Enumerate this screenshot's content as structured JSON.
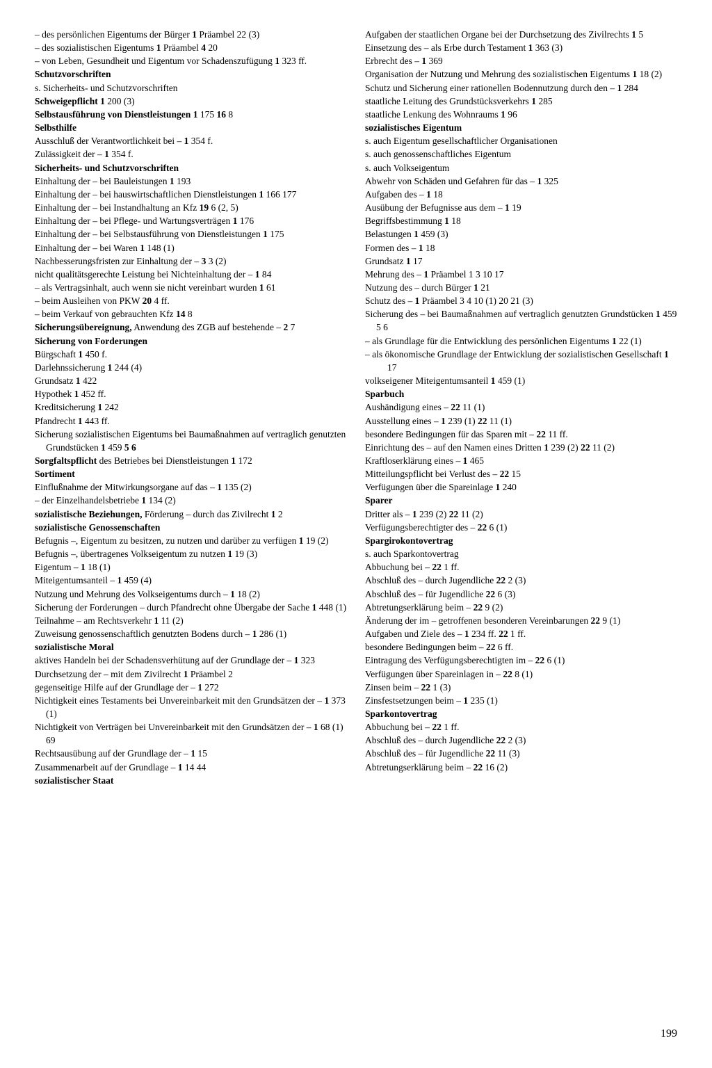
{
  "page_number": "199",
  "left": [
    {
      "t": "sub",
      "pre": "–  ",
      "text": "des persönlichen Eigentums der Bürger  ",
      "refs": [
        {
          "b": "1",
          "r": " Präambel 22 (3)"
        }
      ]
    },
    {
      "t": "sub",
      "pre": "–  ",
      "text": "des sozialistischen Eigentums  ",
      "refs": [
        {
          "b": "1",
          "r": " Präambel   "
        },
        {
          "b": "4",
          "r": " 20"
        }
      ]
    },
    {
      "t": "sub",
      "pre": "–  ",
      "text": "von Leben, Gesundheit und Eigentum vor Schadenszufügung  ",
      "refs": [
        {
          "b": "1",
          "r": " 323 ff."
        }
      ]
    },
    {
      "t": "hw",
      "text": "Schutzvorschriften"
    },
    {
      "t": "entry",
      "text": "s. Sicherheits- und Schutzvorschriften"
    },
    {
      "t": "entry",
      "text": "",
      "hw": "Schweigepflicht",
      "post": "  ",
      "refs": [
        {
          "b": "1",
          "r": " 200 (3)"
        }
      ]
    },
    {
      "t": "entry",
      "text": "",
      "hw": "Selbstausführung von Dienstleistungen",
      "post": "  ",
      "refs": [
        {
          "b": "1",
          "r": " 175  "
        },
        {
          "b": "16",
          "r": " 8"
        }
      ]
    },
    {
      "t": "hw",
      "text": "Selbsthilfe"
    },
    {
      "t": "entry",
      "text": "Ausschluß der Verantwortlichkeit bei –  ",
      "refs": [
        {
          "b": "1",
          "r": " 354 f."
        }
      ]
    },
    {
      "t": "entry",
      "text": "Zulässigkeit der –  ",
      "refs": [
        {
          "b": "1",
          "r": " 354 f."
        }
      ]
    },
    {
      "t": "hw",
      "text": "Sicherheits- und Schutzvorschriften"
    },
    {
      "t": "entry",
      "text": "Einhaltung der – bei Bauleistungen  ",
      "refs": [
        {
          "b": "1",
          "r": " 193"
        }
      ]
    },
    {
      "t": "entry",
      "text": "Einhaltung der – bei hauswirtschaftlichen Dienstleistungen  ",
      "refs": [
        {
          "b": "1",
          "r": " 166 177"
        }
      ]
    },
    {
      "t": "entry",
      "text": "Einhaltung der – bei Instandhaltung an Kfz  ",
      "refs": [
        {
          "b": "19",
          "r": " 6 (2, 5)"
        }
      ]
    },
    {
      "t": "entry",
      "text": "Einhaltung der – bei Pflege- und Wartungsverträgen  ",
      "refs": [
        {
          "b": "1",
          "r": " 176"
        }
      ]
    },
    {
      "t": "entry",
      "text": "Einhaltung der – bei Selbstausführung von Dienstleistungen  ",
      "refs": [
        {
          "b": "1",
          "r": " 175"
        }
      ]
    },
    {
      "t": "entry",
      "text": "Einhaltung der – bei Waren  ",
      "refs": [
        {
          "b": "1",
          "r": " 148 (1)"
        }
      ]
    },
    {
      "t": "entry",
      "text": "Nachbesserungsfristen zur Einhaltung der –  ",
      "refs": [
        {
          "b": "3",
          "r": " 3 (2)"
        }
      ]
    },
    {
      "t": "entry",
      "text": "nicht qualitätsgerechte Leistung bei Nichteinhaltung der –  ",
      "refs": [
        {
          "b": "1",
          "r": " 84"
        }
      ]
    },
    {
      "t": "sub",
      "pre": "–  ",
      "text": "als Vertragsinhalt, auch wenn sie nicht vereinbart wurden  ",
      "refs": [
        {
          "b": "1",
          "r": " 61"
        }
      ]
    },
    {
      "t": "sub",
      "pre": "–  ",
      "text": "beim Ausleihen von PKW  ",
      "refs": [
        {
          "b": "20",
          "r": " 4 ff."
        }
      ]
    },
    {
      "t": "sub",
      "pre": "–  ",
      "text": "beim Verkauf von gebrauchten Kfz  ",
      "refs": [
        {
          "b": "14",
          "r": " 8"
        }
      ]
    },
    {
      "t": "entry",
      "text": "",
      "hw": "Sicherungsübereignung,",
      "post": " Anwendung des ZGB auf bestehende –  ",
      "refs": [
        {
          "b": "2",
          "r": " 7"
        }
      ]
    },
    {
      "t": "hw",
      "text": "Sicherung von Forderungen"
    },
    {
      "t": "entry",
      "text": "Bürgschaft  ",
      "refs": [
        {
          "b": "1",
          "r": " 450 f."
        }
      ]
    },
    {
      "t": "entry",
      "text": "Darlehnssicherung  ",
      "refs": [
        {
          "b": "1",
          "r": " 244 (4)"
        }
      ]
    },
    {
      "t": "entry",
      "text": "Grundsatz  ",
      "refs": [
        {
          "b": "1",
          "r": " 422"
        }
      ]
    },
    {
      "t": "entry",
      "text": "Hypothek  ",
      "refs": [
        {
          "b": "1",
          "r": " 452 ff."
        }
      ]
    },
    {
      "t": "entry",
      "text": "Kreditsicherung  ",
      "refs": [
        {
          "b": "1",
          "r": " 242"
        }
      ]
    },
    {
      "t": "entry",
      "text": "Pfandrecht  ",
      "refs": [
        {
          "b": "1",
          "r": " 443 ff."
        }
      ]
    },
    {
      "t": "entry",
      "text": "Sicherung sozialistischen Eigentums bei Baumaßnahmen auf vertraglich genutzten Grundstücken  ",
      "refs": [
        {
          "b": "1",
          "r": " 459  "
        },
        {
          "b": "5",
          "r": "  "
        },
        {
          "b": "6",
          "r": ""
        }
      ]
    },
    {
      "t": "entry",
      "text": "",
      "hw": "Sorgfaltspflicht",
      "post": " des Betriebes bei Dienstleistungen  ",
      "refs": [
        {
          "b": "1",
          "r": " 172"
        }
      ]
    },
    {
      "t": "hw",
      "text": "Sortiment"
    },
    {
      "t": "entry",
      "text": "Einflußnahme der Mitwirkungsorgane auf das –  ",
      "refs": [
        {
          "b": "1",
          "r": " 135 (2)"
        }
      ]
    },
    {
      "t": "sub",
      "pre": "–  ",
      "text": "der Einzelhandelsbetriebe  ",
      "refs": [
        {
          "b": "1",
          "r": " 134 (2)"
        }
      ]
    },
    {
      "t": "entry",
      "text": "",
      "hw": "sozialistische Beziehungen,",
      "post": " Förderung – durch das Zivilrecht  ",
      "refs": [
        {
          "b": "1",
          "r": " 2"
        }
      ]
    },
    {
      "t": "hw",
      "text": "sozialistische Genossenschaften"
    },
    {
      "t": "entry",
      "text": "Befugnis –, Eigentum zu besitzen, zu nutzen und darüber zu verfügen  ",
      "refs": [
        {
          "b": "1",
          "r": " 19 (2)"
        }
      ]
    },
    {
      "t": "entry",
      "text": "Befugnis –, übertragenes Volkseigentum zu nutzen  ",
      "refs": [
        {
          "b": "1",
          "r": " 19 (3)"
        }
      ]
    },
    {
      "t": "entry",
      "text": "Eigentum –  ",
      "refs": [
        {
          "b": "1",
          "r": " 18 (1)"
        }
      ]
    },
    {
      "t": "entry",
      "text": "Miteigentumsanteil –  ",
      "refs": [
        {
          "b": "1",
          "r": " 459 (4)"
        }
      ]
    },
    {
      "t": "entry",
      "text": "Nutzung und Mehrung des Volkseigentums durch –  ",
      "refs": [
        {
          "b": "1",
          "r": " 18 (2)"
        }
      ]
    },
    {
      "t": "entry",
      "text": "Sicherung der Forderungen – durch Pfandrecht ohne Übergabe der Sache  ",
      "refs": [
        {
          "b": "1",
          "r": " 448 (1)"
        }
      ]
    },
    {
      "t": "entry",
      "text": "Teilnahme – am Rechtsverkehr  ",
      "refs": [
        {
          "b": "1",
          "r": " 11 (2)"
        }
      ]
    },
    {
      "t": "entry",
      "text": "Zuweisung genossenschaftlich genutzten Bodens durch – ",
      "refs": [
        {
          "b": "1",
          "r": " 286 (1)"
        }
      ]
    },
    {
      "t": "hw",
      "text": "sozialistische Moral"
    },
    {
      "t": "entry",
      "text": "aktives Handeln bei der Schadensverhütung auf der Grundlage der –  ",
      "refs": [
        {
          "b": "1",
          "r": " 323"
        }
      ]
    },
    {
      "t": "entry",
      "text": "Durchsetzung der – mit dem Zivilrecht  ",
      "refs": [
        {
          "b": "1",
          "r": " Präambel 2"
        }
      ]
    },
    {
      "t": "entry",
      "text": "gegenseitige Hilfe auf der Grundlage der –  ",
      "refs": [
        {
          "b": "1",
          "r": " 272"
        }
      ]
    },
    {
      "t": "entry",
      "text": "Nichtigkeit eines Testaments bei Unvereinbarkeit mit den Grundsätzen der –  ",
      "refs": [
        {
          "b": "1",
          "r": " 373 (1)"
        }
      ]
    }
  ],
  "right": [
    {
      "t": "entry",
      "text": "Nichtigkeit von Verträgen bei Unvereinbarkeit mit den Grundsätzen der –  ",
      "refs": [
        {
          "b": "1",
          "r": " 68 (1) 69"
        }
      ]
    },
    {
      "t": "entry",
      "text": "Rechtsausübung auf der Grundlage der –  ",
      "refs": [
        {
          "b": "1",
          "r": " 15"
        }
      ]
    },
    {
      "t": "entry",
      "text": "Zusammenarbeit auf der Grundlage –  ",
      "refs": [
        {
          "b": "1",
          "r": " 14 44"
        }
      ]
    },
    {
      "t": "hw",
      "text": "sozialistischer Staat"
    },
    {
      "t": "entry",
      "text": "Aufgaben der staatlichen Organe bei der Durchsetzung des Zivilrechts  ",
      "refs": [
        {
          "b": "1",
          "r": " 5"
        }
      ]
    },
    {
      "t": "entry",
      "text": "Einsetzung des – als Erbe durch Testament  ",
      "refs": [
        {
          "b": "1",
          "r": " 363 (3)"
        }
      ]
    },
    {
      "t": "entry",
      "text": "Erbrecht des –  ",
      "refs": [
        {
          "b": "1",
          "r": " 369"
        }
      ]
    },
    {
      "t": "entry",
      "text": "Organisation der Nutzung und Mehrung des sozialistischen Eigentums  ",
      "refs": [
        {
          "b": "1",
          "r": " 18 (2)"
        }
      ]
    },
    {
      "t": "entry",
      "text": "Schutz und Sicherung einer rationellen Bodennutzung durch den –  ",
      "refs": [
        {
          "b": "1",
          "r": " 284"
        }
      ]
    },
    {
      "t": "entry",
      "text": "staatliche Leitung des Grundstücksverkehrs  ",
      "refs": [
        {
          "b": "1",
          "r": " 285"
        }
      ]
    },
    {
      "t": "entry",
      "text": "staatliche Lenkung des Wohnraums  ",
      "refs": [
        {
          "b": "1",
          "r": " 96"
        }
      ]
    },
    {
      "t": "hw",
      "text": "sozialistisches Eigentum"
    },
    {
      "t": "entry",
      "text": "s. auch Eigentum gesellschaftlicher Organisationen"
    },
    {
      "t": "entry",
      "text": "s. auch genossenschaftliches Eigentum"
    },
    {
      "t": "entry",
      "text": "s. auch Volkseigentum"
    },
    {
      "t": "entry",
      "text": "Abwehr von Schäden und Gefahren für das –  ",
      "refs": [
        {
          "b": "1",
          "r": " 325"
        }
      ]
    },
    {
      "t": "entry",
      "text": "Aufgaben des –  ",
      "refs": [
        {
          "b": "1",
          "r": " 18"
        }
      ]
    },
    {
      "t": "entry",
      "text": "Ausübung der Befugnisse aus dem –  ",
      "refs": [
        {
          "b": "1",
          "r": " 19"
        }
      ]
    },
    {
      "t": "entry",
      "text": "Begriffsbestimmung  ",
      "refs": [
        {
          "b": "1",
          "r": " 18"
        }
      ]
    },
    {
      "t": "entry",
      "text": "Belastungen  ",
      "refs": [
        {
          "b": "1",
          "r": " 459 (3)"
        }
      ]
    },
    {
      "t": "entry",
      "text": "Formen des –  ",
      "refs": [
        {
          "b": "1",
          "r": " 18"
        }
      ]
    },
    {
      "t": "entry",
      "text": "Grundsatz  ",
      "refs": [
        {
          "b": "1",
          "r": " 17"
        }
      ]
    },
    {
      "t": "entry",
      "text": "Mehrung des –  ",
      "refs": [
        {
          "b": "1",
          "r": " Präambel 1 3 10 17"
        }
      ]
    },
    {
      "t": "entry",
      "text": "Nutzung des – durch Bürger  ",
      "refs": [
        {
          "b": "1",
          "r": " 21"
        }
      ]
    },
    {
      "t": "entry",
      "text": "Schutz des –  ",
      "refs": [
        {
          "b": "1",
          "r": " Präambel 3 4 10 (1) 20 21 (3)"
        }
      ]
    },
    {
      "t": "entry",
      "text": "Sicherung des – bei Baumaßnahmen auf vertraglich genutzten Grundstücken  ",
      "refs": [
        {
          "b": "1",
          "r": " 459 5 6"
        }
      ]
    },
    {
      "t": "sub",
      "pre": "–  ",
      "text": "als Grundlage für die Entwicklung des persönlichen Eigentums  ",
      "refs": [
        {
          "b": "1",
          "r": " 22 (1)"
        }
      ]
    },
    {
      "t": "sub",
      "pre": "–  ",
      "text": "als ökonomische Grundlage der Entwicklung der sozialistischen Gesellschaft  ",
      "refs": [
        {
          "b": "1",
          "r": " 17"
        }
      ]
    },
    {
      "t": "entry",
      "text": "volkseigener Miteigentumsanteil  ",
      "refs": [
        {
          "b": "1",
          "r": " 459 (1)"
        }
      ]
    },
    {
      "t": "hw",
      "text": "Sparbuch"
    },
    {
      "t": "entry",
      "text": "Aushändigung eines –  ",
      "refs": [
        {
          "b": "22",
          "r": " 11 (1)"
        }
      ]
    },
    {
      "t": "entry",
      "text": "Ausstellung eines –  ",
      "refs": [
        {
          "b": "1",
          "r": " 239 (1)  "
        },
        {
          "b": "22",
          "r": " 11 (1)"
        }
      ]
    },
    {
      "t": "entry",
      "text": "besondere Bedingungen für das Sparen mit –  ",
      "refs": [
        {
          "b": "22",
          "r": " 11 ff."
        }
      ]
    },
    {
      "t": "entry",
      "text": "Einrichtung des – auf den Namen eines Dritten  ",
      "refs": [
        {
          "b": "1",
          "r": " 239 (2)  "
        },
        {
          "b": "22",
          "r": " 11 (2)"
        }
      ]
    },
    {
      "t": "entry",
      "text": "Kraftloserklärung eines –  ",
      "refs": [
        {
          "b": "1",
          "r": " 465"
        }
      ]
    },
    {
      "t": "entry",
      "text": "Mitteilungspflicht bei Verlust des –  ",
      "refs": [
        {
          "b": "22",
          "r": " 15"
        }
      ]
    },
    {
      "t": "entry",
      "text": "Verfügungen über die Spareinlage  ",
      "refs": [
        {
          "b": "1",
          "r": " 240"
        }
      ]
    },
    {
      "t": "hw",
      "text": "Sparer"
    },
    {
      "t": "entry",
      "text": "Dritter als –  ",
      "refs": [
        {
          "b": "1",
          "r": " 239 (2)  "
        },
        {
          "b": "22",
          "r": " 11 (2)"
        }
      ]
    },
    {
      "t": "entry",
      "text": "Verfügungsberechtigter des –  ",
      "refs": [
        {
          "b": "22",
          "r": " 6 (1)"
        }
      ]
    },
    {
      "t": "hw",
      "text": "Spargirokontovertrag"
    },
    {
      "t": "entry",
      "text": "s. auch Sparkontovertrag"
    },
    {
      "t": "entry",
      "text": "Abbuchung bei –  ",
      "refs": [
        {
          "b": "22",
          "r": " 1 ff."
        }
      ]
    },
    {
      "t": "entry",
      "text": "Abschluß des – durch Jugendliche  ",
      "refs": [
        {
          "b": "22",
          "r": " 2 (3)"
        }
      ]
    },
    {
      "t": "entry",
      "text": "Abschluß des – für Jugendliche  ",
      "refs": [
        {
          "b": "22",
          "r": " 6 (3)"
        }
      ]
    },
    {
      "t": "entry",
      "text": "Abtretungserklärung beim –  ",
      "refs": [
        {
          "b": "22",
          "r": " 9 (2)"
        }
      ]
    },
    {
      "t": "entry",
      "text": "Änderung der im – getroffenen besonderen Vereinbarungen  ",
      "refs": [
        {
          "b": "22",
          "r": " 9 (1)"
        }
      ]
    },
    {
      "t": "entry",
      "text": "Aufgaben und Ziele des –  ",
      "refs": [
        {
          "b": "1",
          "r": " 234 ff.  "
        },
        {
          "b": "22",
          "r": " 1 ff."
        }
      ]
    },
    {
      "t": "entry",
      "text": "besondere Bedingungen beim –  ",
      "refs": [
        {
          "b": "22",
          "r": " 6 ff."
        }
      ]
    },
    {
      "t": "entry",
      "text": "Eintragung des Verfügungsberechtigten im –  ",
      "refs": [
        {
          "b": "22",
          "r": " 6 (1)"
        }
      ]
    },
    {
      "t": "entry",
      "text": "Verfügungen über Spareinlagen in –  ",
      "refs": [
        {
          "b": "22",
          "r": " 8 (1)"
        }
      ]
    },
    {
      "t": "entry",
      "text": "Zinsen beim –  ",
      "refs": [
        {
          "b": "22",
          "r": " 1 (3)"
        }
      ]
    },
    {
      "t": "entry",
      "text": "Zinsfestsetzungen beim –  ",
      "refs": [
        {
          "b": "1",
          "r": " 235 (1)"
        }
      ]
    },
    {
      "t": "hw",
      "text": "Sparkontovertrag"
    },
    {
      "t": "entry",
      "text": "Abbuchung bei –  ",
      "refs": [
        {
          "b": "22",
          "r": " 1 ff."
        }
      ]
    },
    {
      "t": "entry",
      "text": "Abschluß des – durch Jugendliche  ",
      "refs": [
        {
          "b": "22",
          "r": " 2 (3)"
        }
      ]
    },
    {
      "t": "entry",
      "text": "Abschluß des – für Jugendliche  ",
      "refs": [
        {
          "b": "22",
          "r": " 11 (3)"
        }
      ]
    },
    {
      "t": "entry",
      "text": "Abtretungserklärung beim –  ",
      "refs": [
        {
          "b": "22",
          "r": " 16 (2)"
        }
      ]
    }
  ]
}
